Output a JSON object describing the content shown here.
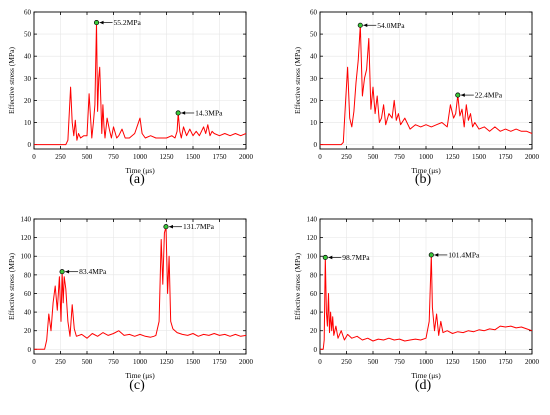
{
  "figure": {
    "panels": [
      "(a)",
      "(b)",
      "(c)",
      "(d)"
    ]
  },
  "colors": {
    "line": "#ff0000",
    "axis": "#000000",
    "grid": "#e6e6e6",
    "peak_marker_fill": "#3cc83c",
    "peak_marker_edge": "#000000"
  },
  "chart_data": [
    {
      "type": "line",
      "panel_label": "(a)",
      "xlabel": "Time (μs)",
      "ylabel": "Effective stress (MPa)",
      "xlim": [
        0,
        2000
      ],
      "ylim": [
        -2,
        60
      ],
      "xticks": [
        0,
        250,
        500,
        750,
        1000,
        1250,
        1500,
        1750,
        2000
      ],
      "yticks": [
        0,
        10,
        20,
        30,
        40,
        50,
        60
      ],
      "grid": true,
      "peaks": [
        {
          "x": 590,
          "y": 55.2,
          "label": "55.2MPa"
        },
        {
          "x": 1360,
          "y": 14.3,
          "label": "14.3MPa"
        }
      ],
      "series": [
        {
          "x": [
            0,
            300,
            320,
            345,
            360,
            375,
            390,
            405,
            420,
            440,
            470,
            500,
            520,
            545,
            560,
            575,
            590,
            600,
            610,
            620,
            630,
            640,
            650,
            660,
            670,
            690,
            710,
            730,
            750,
            780,
            800,
            830,
            860,
            900,
            950,
            1000,
            1020,
            1050,
            1100,
            1150,
            1200,
            1250,
            1300,
            1330,
            1350,
            1360,
            1375,
            1390,
            1410,
            1440,
            1470,
            1500,
            1530,
            1560,
            1600,
            1620,
            1640,
            1660,
            1680,
            1700,
            1750,
            1800,
            1850,
            1900,
            1950,
            2000
          ],
          "y": [
            0,
            0,
            2,
            26,
            10,
            4,
            11,
            2,
            5,
            3,
            4,
            4,
            23,
            3,
            10,
            18,
            55.2,
            15,
            30,
            35,
            20,
            5,
            18,
            8,
            3,
            12,
            7,
            3,
            8,
            3,
            4,
            7,
            3,
            3,
            5,
            12,
            5,
            3,
            4,
            3,
            3,
            3,
            4,
            3,
            6,
            14.3,
            6,
            3,
            8,
            4,
            7,
            4,
            6,
            4,
            8,
            5,
            9,
            4,
            6,
            5,
            4,
            5,
            4,
            5,
            4,
            5
          ]
        }
      ]
    },
    {
      "type": "line",
      "panel_label": "(b)",
      "xlabel": "Time (μs)",
      "ylabel": "Effective stress (MPa)",
      "xlim": [
        0,
        2000
      ],
      "ylim": [
        -2,
        60
      ],
      "xticks": [
        0,
        250,
        500,
        750,
        1000,
        1250,
        1500,
        1750,
        2000
      ],
      "yticks": [
        0,
        10,
        20,
        30,
        40,
        50,
        60
      ],
      "grid": true,
      "peaks": [
        {
          "x": 380,
          "y": 54.0,
          "label": "54.0MPa"
        },
        {
          "x": 1300,
          "y": 22.4,
          "label": "22.4MPa"
        }
      ],
      "series": [
        {
          "x": [
            0,
            200,
            220,
            240,
            260,
            280,
            300,
            320,
            340,
            360,
            380,
            400,
            420,
            440,
            460,
            480,
            500,
            520,
            540,
            560,
            580,
            600,
            620,
            650,
            680,
            700,
            720,
            740,
            760,
            800,
            850,
            900,
            950,
            1000,
            1050,
            1100,
            1150,
            1200,
            1230,
            1260,
            1280,
            1300,
            1320,
            1340,
            1360,
            1380,
            1400,
            1420,
            1440,
            1460,
            1500,
            1550,
            1600,
            1650,
            1700,
            1750,
            1800,
            1850,
            1900,
            1950,
            2000
          ],
          "y": [
            0,
            0,
            1,
            18,
            35,
            12,
            8,
            15,
            28,
            38,
            54.0,
            22,
            30,
            34,
            48,
            16,
            26,
            14,
            22,
            10,
            12,
            18,
            9,
            14,
            12,
            20,
            11,
            14,
            9,
            12,
            7,
            9,
            8,
            9,
            8,
            9,
            10,
            8,
            18,
            12,
            14,
            22.4,
            13,
            16,
            8,
            18,
            11,
            14,
            8,
            10,
            7,
            8,
            6,
            8,
            6,
            7,
            6,
            7,
            6,
            6,
            5
          ]
        }
      ]
    },
    {
      "type": "line",
      "panel_label": "(c)",
      "xlabel": "Time (μs)",
      "ylabel": "Effective stress (MPa)",
      "xlim": [
        0,
        2000
      ],
      "ylim": [
        -5,
        140
      ],
      "xticks": [
        0,
        250,
        500,
        750,
        1000,
        1250,
        1500,
        1750,
        2000
      ],
      "yticks": [
        0,
        20,
        40,
        60,
        80,
        100,
        120,
        140
      ],
      "grid": true,
      "peaks": [
        {
          "x": 265,
          "y": 83.4,
          "label": "83.4MPa"
        },
        {
          "x": 1245,
          "y": 131.7,
          "label": "131.7MPa"
        }
      ],
      "series": [
        {
          "x": [
            0,
            100,
            120,
            140,
            160,
            180,
            200,
            220,
            240,
            255,
            265,
            275,
            285,
            300,
            320,
            340,
            360,
            380,
            400,
            450,
            500,
            550,
            600,
            650,
            700,
            750,
            800,
            850,
            900,
            950,
            1000,
            1050,
            1100,
            1130,
            1150,
            1180,
            1200,
            1215,
            1230,
            1245,
            1260,
            1275,
            1290,
            1310,
            1350,
            1400,
            1450,
            1500,
            1550,
            1600,
            1650,
            1700,
            1750,
            1800,
            1850,
            1900,
            1950,
            2000
          ],
          "y": [
            0,
            0,
            10,
            38,
            20,
            50,
            68,
            42,
            78,
            30,
            83.4,
            50,
            78,
            65,
            30,
            14,
            48,
            22,
            14,
            16,
            12,
            17,
            14,
            18,
            15,
            17,
            20,
            15,
            16,
            14,
            16,
            14,
            13,
            14,
            15,
            30,
            118,
            70,
            125,
            131.7,
            60,
            100,
            30,
            22,
            18,
            16,
            15,
            17,
            14,
            16,
            15,
            17,
            15,
            16,
            14,
            16,
            14,
            15
          ]
        }
      ]
    },
    {
      "type": "line",
      "panel_label": "(d)",
      "xlabel": "Time (μs)",
      "ylabel": "Effective stress (MPa)",
      "xlim": [
        0,
        2000
      ],
      "ylim": [
        -5,
        140
      ],
      "xticks": [
        0,
        250,
        500,
        750,
        1000,
        1250,
        1500,
        1750,
        2000
      ],
      "yticks": [
        0,
        20,
        40,
        60,
        80,
        100,
        120,
        140
      ],
      "grid": true,
      "peaks": [
        {
          "x": 50,
          "y": 98.7,
          "label": "98.7MPa"
        },
        {
          "x": 1050,
          "y": 101.4,
          "label": "101.4MPa"
        }
      ],
      "series": [
        {
          "x": [
            0,
            30,
            40,
            50,
            60,
            70,
            80,
            90,
            100,
            110,
            120,
            130,
            150,
            170,
            200,
            230,
            260,
            300,
            350,
            400,
            450,
            500,
            550,
            600,
            650,
            700,
            750,
            800,
            850,
            900,
            950,
            1000,
            1030,
            1050,
            1060,
            1080,
            1100,
            1120,
            1140,
            1160,
            1200,
            1250,
            1300,
            1350,
            1400,
            1450,
            1500,
            1550,
            1600,
            1650,
            1700,
            1750,
            1800,
            1850,
            1900,
            1950,
            2000
          ],
          "y": [
            0,
            0,
            10,
            98.7,
            40,
            25,
            60,
            18,
            40,
            20,
            35,
            15,
            25,
            12,
            20,
            10,
            16,
            12,
            14,
            10,
            12,
            9,
            11,
            10,
            12,
            10,
            11,
            9,
            10,
            11,
            10,
            12,
            30,
            101.4,
            45,
            20,
            38,
            15,
            30,
            18,
            20,
            17,
            19,
            18,
            20,
            19,
            21,
            20,
            22,
            21,
            25,
            24,
            25,
            23,
            24,
            22,
            20
          ]
        }
      ]
    }
  ]
}
